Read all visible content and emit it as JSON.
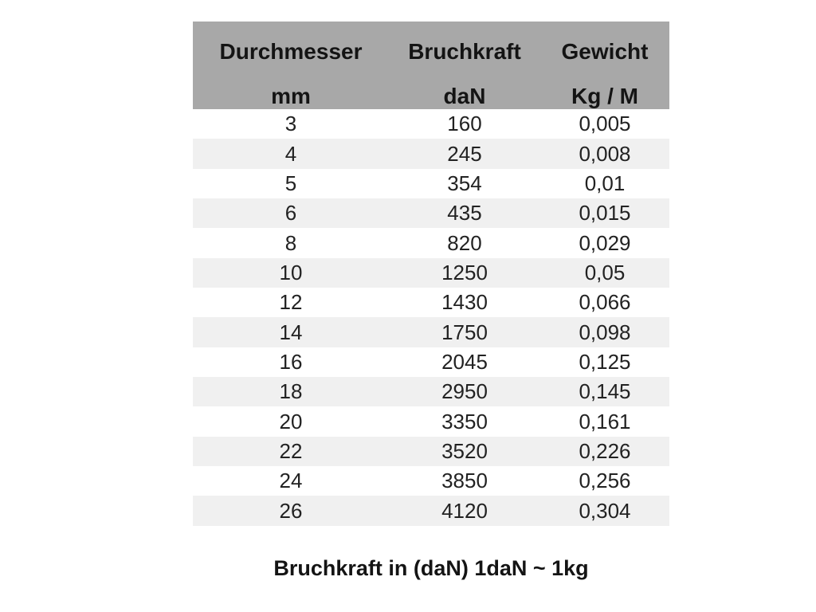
{
  "colors": {
    "header_bg": "#a8a8a8",
    "stripe_bg": "#f0f0f0",
    "text": "#1f1f1f",
    "background": "#ffffff"
  },
  "table": {
    "columns": [
      {
        "label": "Durchmesser",
        "unit": "mm"
      },
      {
        "label": "Bruchkraft",
        "unit": "daN"
      },
      {
        "label": "Gewicht",
        "unit": "Kg / M"
      }
    ],
    "rows": [
      [
        "3",
        "160",
        "0,005"
      ],
      [
        "4",
        "245",
        "0,008"
      ],
      [
        "5",
        "354",
        "0,01"
      ],
      [
        "6",
        "435",
        "0,015"
      ],
      [
        "8",
        "820",
        "0,029"
      ],
      [
        "10",
        "1250",
        "0,05"
      ],
      [
        "12",
        "1430",
        "0,066"
      ],
      [
        "14",
        "1750",
        "0,098"
      ],
      [
        "16",
        "2045",
        "0,125"
      ],
      [
        "18",
        "2950",
        "0,145"
      ],
      [
        "20",
        "3350",
        "0,161"
      ],
      [
        "22",
        "3520",
        "0,226"
      ],
      [
        "24",
        "3850",
        "0,256"
      ],
      [
        "26",
        "4120",
        "0,304"
      ]
    ]
  },
  "caption": "Bruchkraft in (daN) 1daN ~ 1kg",
  "chart_data": {
    "type": "table",
    "title": "Bruchkraft in (daN) 1daN ~ 1kg",
    "columns": [
      "Durchmesser mm",
      "Bruchkraft daN",
      "Gewicht Kg / M"
    ],
    "categories": [
      3,
      4,
      5,
      6,
      8,
      10,
      12,
      14,
      16,
      18,
      20,
      22,
      24,
      26
    ],
    "series": [
      {
        "name": "Bruchkraft daN",
        "values": [
          160,
          245,
          354,
          435,
          820,
          1250,
          1430,
          1750,
          2045,
          2950,
          3350,
          3520,
          3850,
          4120
        ]
      },
      {
        "name": "Gewicht Kg / M",
        "values": [
          0.005,
          0.008,
          0.01,
          0.015,
          0.029,
          0.05,
          0.066,
          0.098,
          0.125,
          0.145,
          0.161,
          0.226,
          0.256,
          0.304
        ]
      }
    ]
  }
}
